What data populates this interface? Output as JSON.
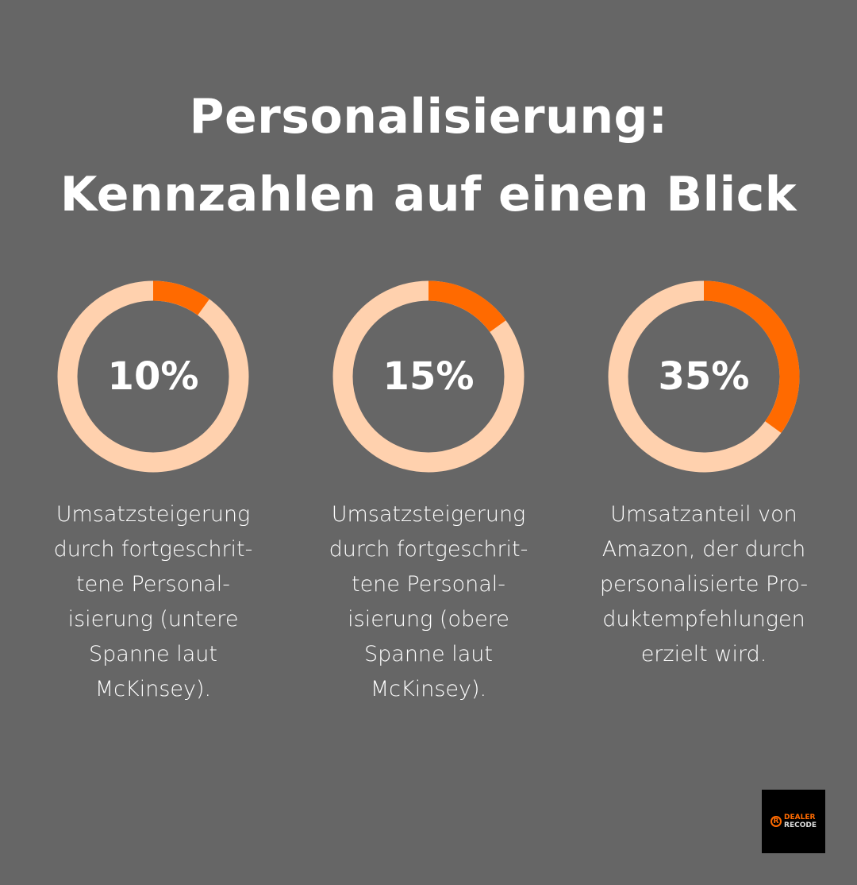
{
  "title_lines": [
    "Personalisierung:",
    "Kennzahlen auf einen Blick"
  ],
  "colors": {
    "background": "#666666",
    "accent": "#ff6a00",
    "track": "#ffd1ae",
    "text": "#ffffff"
  },
  "chart_data": [
    {
      "type": "pie",
      "variant": "donut",
      "value": 10,
      "max": 100,
      "label": "10%",
      "description_lines": [
        "Umsatzsteigerung",
        "durch fortgeschrit-",
        "tene Personal-",
        "isierung (untere",
        "Spanne laut",
        "McKinsey)."
      ]
    },
    {
      "type": "pie",
      "variant": "donut",
      "value": 15,
      "max": 100,
      "label": "15%",
      "description_lines": [
        "Umsatzsteigerung",
        "durch fortgeschrit-",
        "tene Personal-",
        "isierung (obere",
        "Spanne laut",
        "McKinsey)."
      ]
    },
    {
      "type": "pie",
      "variant": "donut",
      "value": 35,
      "max": 100,
      "label": "35%",
      "description_lines": [
        "Umsatzanteil von",
        "Amazon, der durch",
        "personalisierte Pro-",
        "duktempfehlungen",
        "erzielt wird."
      ]
    }
  ],
  "logo": {
    "icon": "R",
    "line1": "DEALER",
    "line2": "RECODE"
  }
}
